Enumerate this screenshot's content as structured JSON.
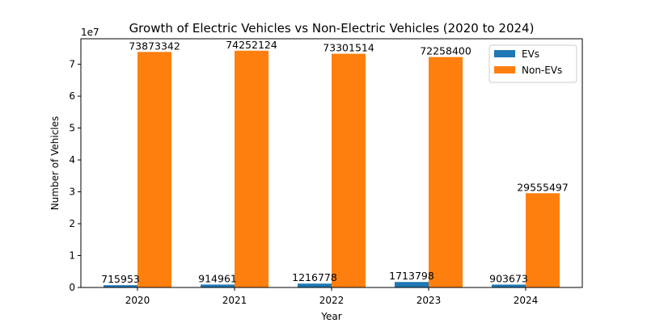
{
  "chart_data": {
    "type": "bar",
    "title": "Growth of Electric Vehicles vs Non-Electric Vehicles (2020 to 2024)",
    "xlabel": "Year",
    "ylabel": "Number of Vehicles",
    "y_offset_text": "1e7",
    "categories": [
      "2020",
      "2021",
      "2022",
      "2023",
      "2024"
    ],
    "ylim": [
      0,
      78000000
    ],
    "yticks": [
      0,
      10000000,
      20000000,
      30000000,
      40000000,
      50000000,
      60000000,
      70000000
    ],
    "ytick_labels": [
      "0",
      "1",
      "2",
      "3",
      "4",
      "5",
      "6",
      "7"
    ],
    "legend_position": "top-right",
    "grid": false,
    "series": [
      {
        "name": "EVs",
        "color": "#1f77b4",
        "values": [
          715953,
          914961,
          1216778,
          1713798,
          903673
        ],
        "labels": [
          "715953",
          "914961",
          "1216778",
          "1713798",
          "903673"
        ]
      },
      {
        "name": "Non-EVs",
        "color": "#ff7f0e",
        "values": [
          73873342,
          74252124,
          73301514,
          72258400,
          29555497
        ],
        "labels": [
          "73873342",
          "74252124",
          "73301514",
          "72258400",
          "29555497"
        ]
      }
    ]
  }
}
